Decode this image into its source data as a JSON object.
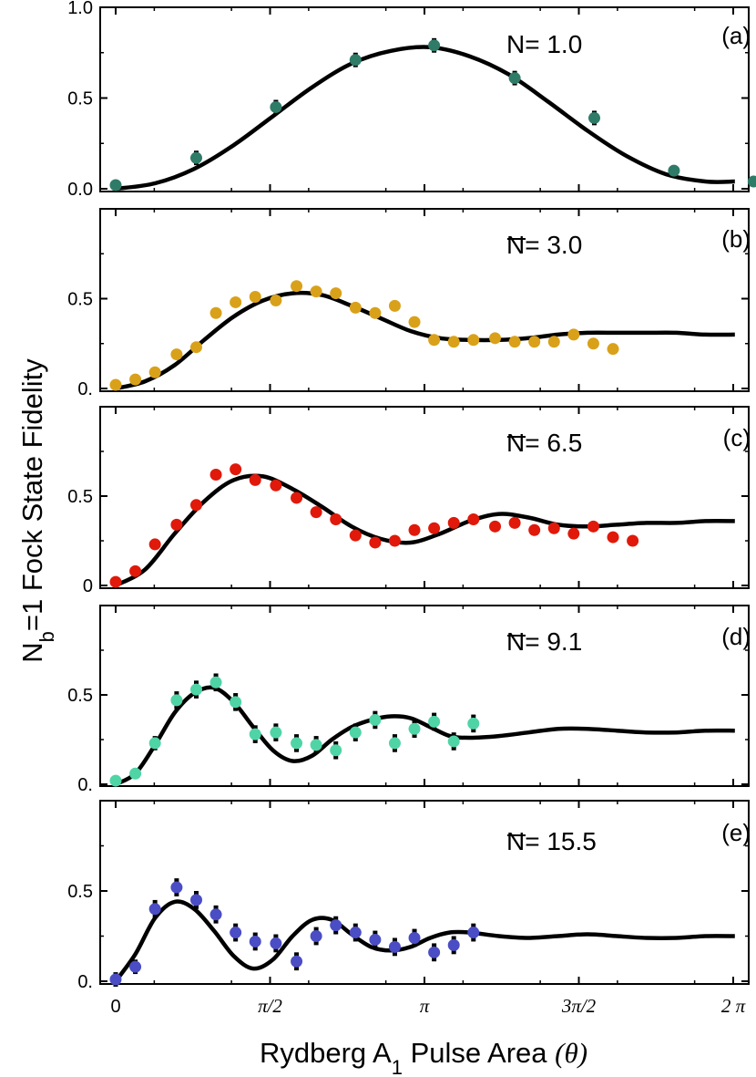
{
  "chart_data": {
    "type": "scatter",
    "ylabel": "N_b=1 Fock State Fidelity",
    "ylabel_main": "N",
    "ylabel_sub": "b",
    "ylabel_rest": "=1 Fock State Fidelity",
    "xlabel": "Rydberg A1 Pulse Area (θ)",
    "xlabel_pre": "Rydberg A",
    "xlabel_sub": "1",
    "xlabel_mid": " Pulse Area ",
    "xlabel_theta": "(θ)",
    "xlim": [
      0,
      6.2832
    ],
    "xticks": [
      {
        "value": 0,
        "label": "0"
      },
      {
        "value": 1.5708,
        "label": "π/2"
      },
      {
        "value": 3.1416,
        "label": "π"
      },
      {
        "value": 4.7124,
        "label": "3π/2"
      },
      {
        "value": 6.2832,
        "label": "2 π"
      }
    ],
    "panels": [
      {
        "id": "a",
        "panel_label": "(a)",
        "n_label": "N= 1.0",
        "ylim": [
          0,
          1.0
        ],
        "yticks": [
          {
            "value": 0,
            "label": "0.0"
          },
          {
            "value": 0.5,
            "label": "0.5"
          },
          {
            "value": 1.0,
            "label": "1.0"
          }
        ],
        "color": "#2e7b68",
        "error_bars": true,
        "x": [
          0.0,
          0.82,
          1.63,
          2.44,
          3.24,
          4.06,
          4.87,
          5.68,
          6.49
        ],
        "y": [
          0.02,
          0.17,
          0.45,
          0.71,
          0.79,
          0.61,
          0.39,
          0.1,
          0.04
        ],
        "err": [
          0.02,
          0.04,
          0.04,
          0.04,
          0.04,
          0.04,
          0.04,
          0.03,
          0.02
        ],
        "fit_x": [
          0,
          0.4,
          0.8,
          1.2,
          1.6,
          2.0,
          2.4,
          2.8,
          3.2,
          3.6,
          4.0,
          4.4,
          4.8,
          5.2,
          5.6,
          6.0,
          6.3
        ],
        "fit_y": [
          0.0,
          0.03,
          0.11,
          0.24,
          0.4,
          0.56,
          0.69,
          0.76,
          0.78,
          0.73,
          0.63,
          0.48,
          0.32,
          0.18,
          0.08,
          0.04,
          0.04
        ]
      },
      {
        "id": "b",
        "panel_label": "(b)",
        "n_label": "N= 3.0",
        "ylim": [
          0,
          1.0
        ],
        "yticks": [
          {
            "value": 0,
            "label": "0."
          },
          {
            "value": 0.5,
            "label": "0.5"
          }
        ],
        "color": "#d9a11a",
        "error_bars": false,
        "x": [
          0.0,
          0.2,
          0.4,
          0.62,
          0.82,
          1.02,
          1.22,
          1.42,
          1.63,
          1.84,
          2.04,
          2.24,
          2.44,
          2.64,
          2.84,
          3.04,
          3.24,
          3.44,
          3.64,
          3.86,
          4.06,
          4.26,
          4.46,
          4.66,
          4.86,
          5.06
        ],
        "y": [
          0.02,
          0.05,
          0.09,
          0.19,
          0.23,
          0.42,
          0.48,
          0.51,
          0.49,
          0.57,
          0.54,
          0.53,
          0.45,
          0.42,
          0.46,
          0.37,
          0.27,
          0.26,
          0.27,
          0.28,
          0.26,
          0.26,
          0.26,
          0.3,
          0.25,
          0.22
        ],
        "fit_x": [
          0,
          0.3,
          0.6,
          0.9,
          1.2,
          1.5,
          1.8,
          2.1,
          2.4,
          2.7,
          3.0,
          3.3,
          3.6,
          3.9,
          4.2,
          4.5,
          4.8,
          5.1,
          5.4,
          5.7,
          6.0,
          6.3
        ],
        "fit_y": [
          0.0,
          0.04,
          0.13,
          0.27,
          0.4,
          0.49,
          0.53,
          0.52,
          0.46,
          0.39,
          0.32,
          0.28,
          0.27,
          0.27,
          0.28,
          0.3,
          0.31,
          0.31,
          0.31,
          0.31,
          0.3,
          0.3
        ]
      },
      {
        "id": "c",
        "panel_label": "(c)",
        "n_label": "N= 6.5",
        "ylim": [
          0,
          1.0
        ],
        "yticks": [
          {
            "value": 0,
            "label": "0"
          },
          {
            "value": 0.5,
            "label": "0.5"
          }
        ],
        "color": "#e0190a",
        "error_bars": false,
        "x": [
          0.0,
          0.2,
          0.4,
          0.62,
          0.82,
          1.02,
          1.22,
          1.42,
          1.63,
          1.84,
          2.04,
          2.24,
          2.44,
          2.64,
          2.84,
          3.04,
          3.24,
          3.44,
          3.64,
          3.86,
          4.06,
          4.26,
          4.46,
          4.66,
          4.86,
          5.06,
          5.26
        ],
        "y": [
          0.02,
          0.08,
          0.23,
          0.34,
          0.45,
          0.62,
          0.65,
          0.59,
          0.56,
          0.49,
          0.41,
          0.37,
          0.28,
          0.24,
          0.25,
          0.31,
          0.32,
          0.35,
          0.37,
          0.33,
          0.35,
          0.31,
          0.32,
          0.29,
          0.33,
          0.27,
          0.25
        ],
        "fit_x": [
          0,
          0.3,
          0.6,
          0.9,
          1.2,
          1.5,
          1.8,
          2.1,
          2.4,
          2.7,
          3.0,
          3.3,
          3.6,
          3.9,
          4.2,
          4.5,
          4.8,
          5.1,
          5.4,
          5.7,
          6.0,
          6.3
        ],
        "fit_y": [
          0.0,
          0.09,
          0.29,
          0.47,
          0.59,
          0.61,
          0.54,
          0.44,
          0.33,
          0.26,
          0.24,
          0.29,
          0.36,
          0.4,
          0.38,
          0.34,
          0.33,
          0.34,
          0.35,
          0.35,
          0.36,
          0.36
        ]
      },
      {
        "id": "d",
        "panel_label": "(d)",
        "n_label": "N= 9.1",
        "ylim": [
          0,
          1.0
        ],
        "yticks": [
          {
            "value": 0,
            "label": "0."
          },
          {
            "value": 0.5,
            "label": "0.5"
          }
        ],
        "color": "#4fd4a6",
        "error_bars": true,
        "x": [
          0.0,
          0.2,
          0.4,
          0.62,
          0.82,
          1.02,
          1.22,
          1.42,
          1.63,
          1.84,
          2.04,
          2.24,
          2.44,
          2.64,
          2.84,
          3.04,
          3.24,
          3.44,
          3.64
        ],
        "y": [
          0.02,
          0.06,
          0.23,
          0.47,
          0.53,
          0.57,
          0.46,
          0.28,
          0.29,
          0.23,
          0.22,
          0.19,
          0.29,
          0.36,
          0.23,
          0.31,
          0.35,
          0.24,
          0.34
        ],
        "err": [
          0.03,
          0.03,
          0.04,
          0.05,
          0.05,
          0.05,
          0.05,
          0.05,
          0.05,
          0.05,
          0.05,
          0.05,
          0.05,
          0.05,
          0.05,
          0.05,
          0.05,
          0.05,
          0.05
        ],
        "fit_x": [
          0,
          0.2,
          0.4,
          0.6,
          0.8,
          1.0,
          1.2,
          1.4,
          1.6,
          1.8,
          2.0,
          2.2,
          2.4,
          2.6,
          2.8,
          3.0,
          3.2,
          3.4,
          3.6,
          3.9,
          4.2,
          4.5,
          4.8,
          5.1,
          5.4,
          5.7,
          6.0,
          6.3
        ],
        "fit_y": [
          0.0,
          0.06,
          0.22,
          0.4,
          0.51,
          0.54,
          0.46,
          0.32,
          0.19,
          0.13,
          0.16,
          0.25,
          0.32,
          0.36,
          0.38,
          0.37,
          0.32,
          0.27,
          0.26,
          0.27,
          0.29,
          0.31,
          0.31,
          0.3,
          0.29,
          0.29,
          0.3,
          0.3
        ]
      },
      {
        "id": "e",
        "panel_label": "(e)",
        "n_label": "N= 15.5",
        "ylim": [
          0,
          1.0
        ],
        "yticks": [
          {
            "value": 0,
            "label": "0."
          },
          {
            "value": 0.5,
            "label": "0.5"
          }
        ],
        "color": "#4a4dc4",
        "error_bars": true,
        "x": [
          0.0,
          0.2,
          0.4,
          0.62,
          0.82,
          1.02,
          1.22,
          1.42,
          1.63,
          1.84,
          2.04,
          2.24,
          2.44,
          2.64,
          2.84,
          3.04,
          3.24,
          3.44,
          3.64
        ],
        "y": [
          0.01,
          0.08,
          0.4,
          0.52,
          0.45,
          0.37,
          0.27,
          0.22,
          0.21,
          0.11,
          0.25,
          0.31,
          0.27,
          0.23,
          0.19,
          0.24,
          0.16,
          0.2,
          0.27
        ],
        "err": [
          0.04,
          0.04,
          0.05,
          0.05,
          0.05,
          0.05,
          0.05,
          0.05,
          0.05,
          0.05,
          0.05,
          0.05,
          0.05,
          0.05,
          0.05,
          0.05,
          0.05,
          0.05,
          0.05
        ],
        "fit_x": [
          0,
          0.2,
          0.4,
          0.6,
          0.8,
          1.0,
          1.2,
          1.4,
          1.6,
          1.8,
          2.0,
          2.2,
          2.4,
          2.6,
          2.8,
          3.0,
          3.2,
          3.4,
          3.6,
          3.9,
          4.2,
          4.5,
          4.8,
          5.1,
          5.4,
          5.7,
          6.0,
          6.3
        ],
        "fit_y": [
          0.0,
          0.15,
          0.35,
          0.44,
          0.4,
          0.28,
          0.14,
          0.07,
          0.12,
          0.25,
          0.34,
          0.34,
          0.26,
          0.19,
          0.17,
          0.19,
          0.24,
          0.27,
          0.27,
          0.25,
          0.24,
          0.25,
          0.26,
          0.25,
          0.24,
          0.24,
          0.25,
          0.25
        ]
      }
    ]
  }
}
